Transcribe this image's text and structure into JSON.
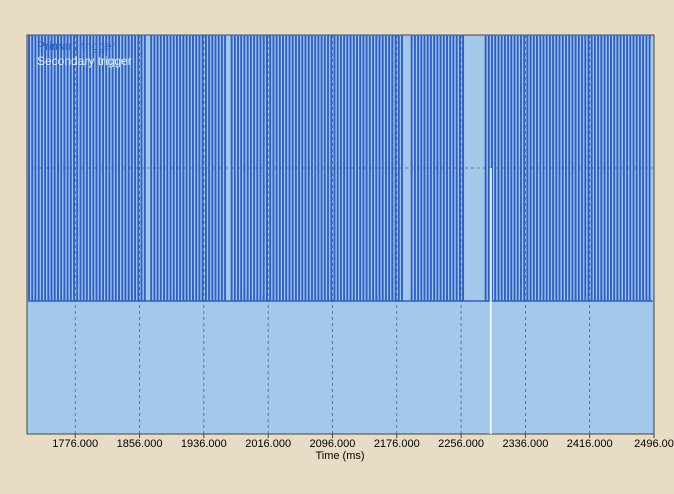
{
  "colors": {
    "page_background": "#e8dcc4",
    "plot_background": "#a4c8ea",
    "primary": "#2e5fc4",
    "secondary": "#e6f2ff",
    "grid": "#4a5f7a"
  },
  "chart_data": {
    "type": "line",
    "title": "",
    "xlabel": "Time (ms)",
    "ylabel": "",
    "xlim": [
      1716,
      2496
    ],
    "ylim": [
      0,
      3
    ],
    "xticks": [
      1776,
      1856,
      1936,
      2016,
      2096,
      2176,
      2256,
      2336,
      2416,
      2496
    ],
    "xtick_labels": [
      "1776.000",
      "1856.000",
      "1936.000",
      "2016.000",
      "2096.000",
      "2176.000",
      "2256.000",
      "2336.000",
      "2416.000",
      "2496.00"
    ],
    "yticks": [
      1,
      2
    ],
    "grid": true,
    "legend": {
      "placement": "top-left",
      "entries": [
        "Primary trigger",
        "Secondary trigger"
      ]
    },
    "series": [
      {
        "name": "Primary trigger",
        "baseline": 1,
        "pulse_high": 3,
        "pulse_period_ms": 4,
        "pulse_width_ms": 1,
        "range": [
          1718,
          2494
        ],
        "gaps": [
          [
            1866,
            1867
          ],
          [
            1967,
            1969
          ],
          [
            2124,
            2124
          ],
          [
            2184,
            2190
          ],
          [
            2263,
            2284
          ]
        ]
      },
      {
        "name": "Secondary trigger",
        "baseline": 0,
        "spikes": [
          {
            "x": 2293,
            "y": 2
          }
        ]
      }
    ]
  }
}
